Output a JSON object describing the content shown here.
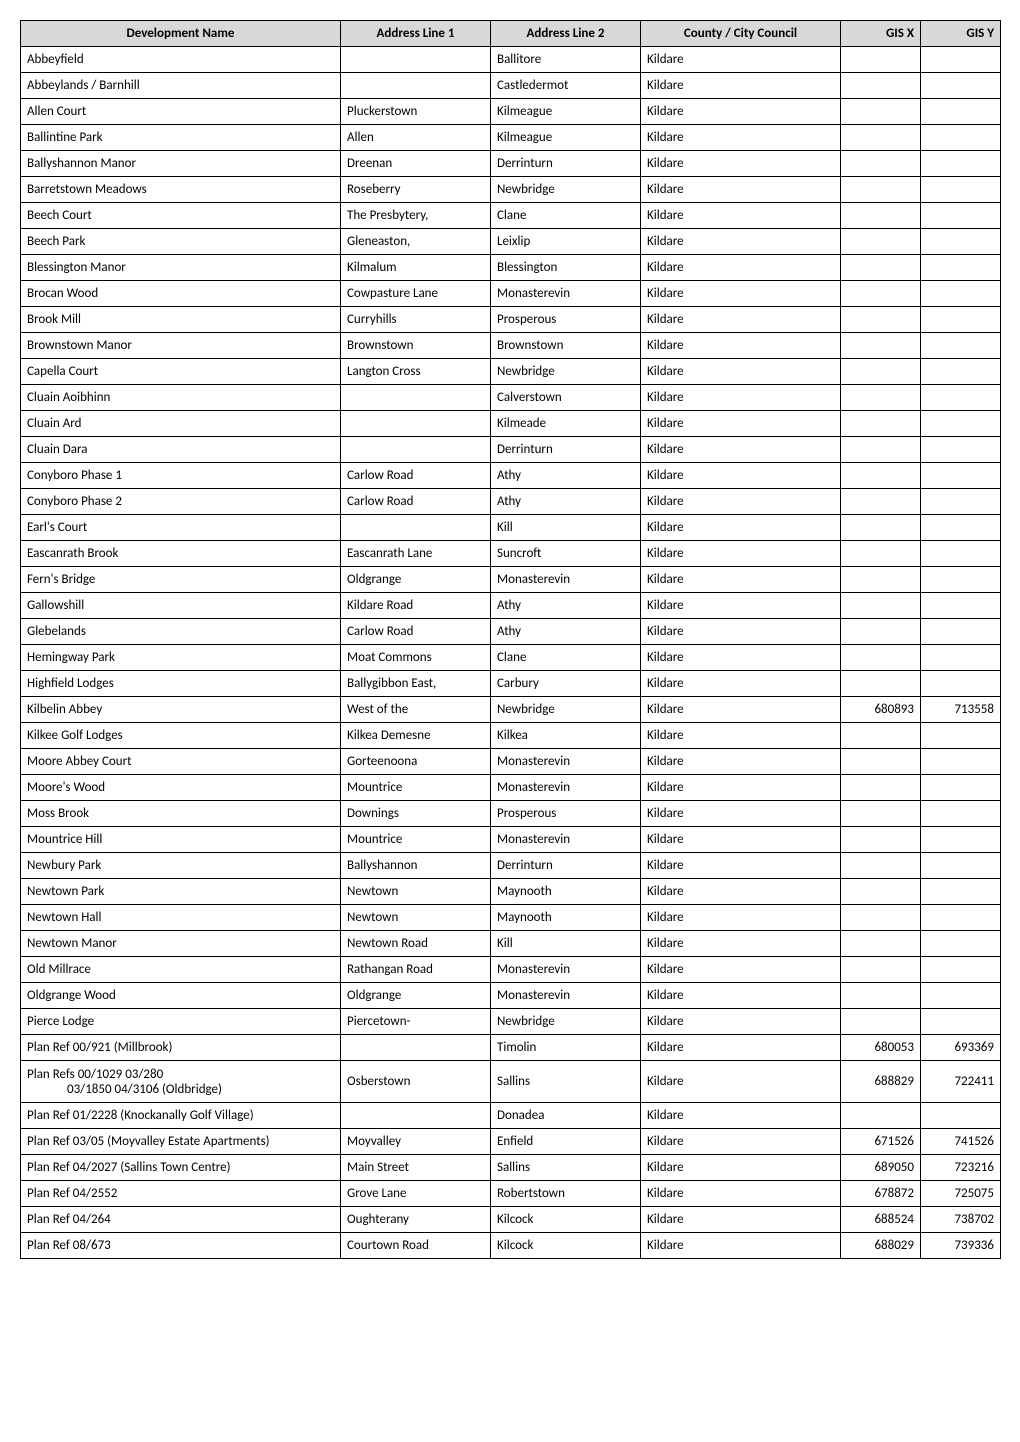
{
  "table": {
    "columns": [
      "Development Name",
      "Address Line 1",
      "Address Line 2",
      "County / City Council",
      "GIS X",
      "GIS Y"
    ],
    "header_bg": "#d8d8d8",
    "border_color": "#000000",
    "font_size": 13,
    "rows": [
      {
        "dev": "Abbeyfield",
        "a1": "",
        "a2": "Ballitore",
        "cc": "Kildare",
        "gx": "",
        "gy": ""
      },
      {
        "dev": "Abbeylands / Barnhill",
        "a1": "",
        "a2": "Castledermot",
        "cc": "Kildare",
        "gx": "",
        "gy": ""
      },
      {
        "dev": "Allen Court",
        "a1": "Pluckerstown",
        "a2": "Kilmeague",
        "cc": "Kildare",
        "gx": "",
        "gy": ""
      },
      {
        "dev": "Ballintine Park",
        "a1": "Allen",
        "a2": "Kilmeague",
        "cc": "Kildare",
        "gx": "",
        "gy": ""
      },
      {
        "dev": "Ballyshannon Manor",
        "a1": "Dreenan",
        "a2": "Derrinturn",
        "cc": "Kildare",
        "gx": "",
        "gy": ""
      },
      {
        "dev": "Barretstown Meadows",
        "a1": "Roseberry",
        "a2": "Newbridge",
        "cc": "Kildare",
        "gx": "",
        "gy": ""
      },
      {
        "dev": "Beech Court",
        "a1": "The Presbytery,",
        "a2": "Clane",
        "cc": "Kildare",
        "gx": "",
        "gy": ""
      },
      {
        "dev": "Beech Park",
        "a1": "Gleneaston,",
        "a2": "Leixlip",
        "cc": "Kildare",
        "gx": "",
        "gy": ""
      },
      {
        "dev": "Blessington Manor",
        "a1": "Kilmalum",
        "a2": "Blessington",
        "cc": "Kildare",
        "gx": "",
        "gy": ""
      },
      {
        "dev": "Brocan Wood",
        "a1": "Cowpasture Lane",
        "a2": "Monasterevin",
        "cc": "Kildare",
        "gx": "",
        "gy": ""
      },
      {
        "dev": "Brook Mill",
        "a1": "Curryhills",
        "a2": "Prosperous",
        "cc": "Kildare",
        "gx": "",
        "gy": ""
      },
      {
        "dev": "Brownstown Manor",
        "a1": "Brownstown",
        "a2": "Brownstown",
        "cc": "Kildare",
        "gx": "",
        "gy": ""
      },
      {
        "dev": "Capella Court",
        "a1": "Langton Cross",
        "a2": "Newbridge",
        "cc": "Kildare",
        "gx": "",
        "gy": ""
      },
      {
        "dev": "Cluain Aoibhinn",
        "a1": "",
        "a2": "Calverstown",
        "cc": "Kildare",
        "gx": "",
        "gy": ""
      },
      {
        "dev": "Cluain Ard",
        "a1": "",
        "a2": "Kilmeade",
        "cc": "Kildare",
        "gx": "",
        "gy": ""
      },
      {
        "dev": "Cluain Dara",
        "a1": "",
        "a2": "Derrinturn",
        "cc": "Kildare",
        "gx": "",
        "gy": ""
      },
      {
        "dev": "Conyboro Phase 1",
        "a1": "Carlow Road",
        "a2": "Athy",
        "cc": "Kildare",
        "gx": "",
        "gy": ""
      },
      {
        "dev": "Conyboro Phase 2",
        "a1": "Carlow Road",
        "a2": "Athy",
        "cc": "Kildare",
        "gx": "",
        "gy": ""
      },
      {
        "dev": "Earl's Court",
        "a1": "",
        "a2": "Kill",
        "cc": "Kildare",
        "gx": "",
        "gy": ""
      },
      {
        "dev": "Eascanrath Brook",
        "a1": "Eascanrath Lane",
        "a2": "Suncroft",
        "cc": "Kildare",
        "gx": "",
        "gy": ""
      },
      {
        "dev": "Fern's Bridge",
        "a1": "Oldgrange",
        "a2": "Monasterevin",
        "cc": "Kildare",
        "gx": "",
        "gy": ""
      },
      {
        "dev": "Gallowshill",
        "a1": "Kildare Road",
        "a2": "Athy",
        "cc": "Kildare",
        "gx": "",
        "gy": ""
      },
      {
        "dev": "Glebelands",
        "a1": "Carlow Road",
        "a2": "Athy",
        "cc": "Kildare",
        "gx": "",
        "gy": ""
      },
      {
        "dev": "Hemingway Park",
        "a1": "Moat Commons",
        "a2": "Clane",
        "cc": "Kildare",
        "gx": "",
        "gy": ""
      },
      {
        "dev": "Highfield Lodges",
        "a1": "Ballygibbon East,",
        "a2": "Carbury",
        "cc": "Kildare",
        "gx": "",
        "gy": ""
      },
      {
        "dev": "Kilbelin Abbey",
        "a1": "West of the",
        "a2": "Newbridge",
        "cc": "Kildare",
        "gx": "680893",
        "gy": "713558"
      },
      {
        "dev": "Kilkee Golf Lodges",
        "a1": "Kilkea Demesne",
        "a2": "Kilkea",
        "cc": "Kildare",
        "gx": "",
        "gy": ""
      },
      {
        "dev": "Moore Abbey Court",
        "a1": "Gorteenoona",
        "a2": "Monasterevin",
        "cc": "Kildare",
        "gx": "",
        "gy": ""
      },
      {
        "dev": "Moore's Wood",
        "a1": "Mountrice",
        "a2": "Monasterevin",
        "cc": "Kildare",
        "gx": "",
        "gy": ""
      },
      {
        "dev": "Moss Brook",
        "a1": "Downings",
        "a2": "Prosperous",
        "cc": "Kildare",
        "gx": "",
        "gy": ""
      },
      {
        "dev": "Mountrice Hill",
        "a1": "Mountrice",
        "a2": "Monasterevin",
        "cc": "Kildare",
        "gx": "",
        "gy": ""
      },
      {
        "dev": "Newbury Park",
        "a1": "Ballyshannon",
        "a2": "Derrinturn",
        "cc": "Kildare",
        "gx": "",
        "gy": ""
      },
      {
        "dev": "Newtown Park",
        "a1": "Newtown",
        "a2": "Maynooth",
        "cc": "Kildare",
        "gx": "",
        "gy": ""
      },
      {
        "dev": "Newtown Hall",
        "a1": "Newtown",
        "a2": "Maynooth",
        "cc": "Kildare",
        "gx": "",
        "gy": ""
      },
      {
        "dev": "Newtown Manor",
        "a1": "Newtown Road",
        "a2": "Kill",
        "cc": "Kildare",
        "gx": "",
        "gy": ""
      },
      {
        "dev": "Old Millrace",
        "a1": "Rathangan Road",
        "a2": "Monasterevin",
        "cc": "Kildare",
        "gx": "",
        "gy": ""
      },
      {
        "dev": "Oldgrange Wood",
        "a1": "Oldgrange",
        "a2": "Monasterevin",
        "cc": "Kildare",
        "gx": "",
        "gy": ""
      },
      {
        "dev": "Pierce Lodge",
        "a1": "Piercetown-",
        "a2": "Newbridge",
        "cc": "Kildare",
        "gx": "",
        "gy": ""
      },
      {
        "dev": "Plan Ref 00/921 (Millbrook)",
        "a1": "",
        "a2": "Timolin",
        "cc": "Kildare",
        "gx": "680053",
        "gy": "693369"
      },
      {
        "dev": "Plan Refs 00/1029 03/280 03/1850 04/3106 (Oldbridge)",
        "a1": "Osberstown",
        "a2": "Sallins",
        "cc": "Kildare",
        "gx": "688829",
        "gy": "722411",
        "tall": true
      },
      {
        "dev": "Plan Ref 01/2228 (Knockanally Golf Village)",
        "a1": "",
        "a2": "Donadea",
        "cc": "Kildare",
        "gx": "",
        "gy": ""
      },
      {
        "dev": "Plan Ref 03/05 (Moyvalley Estate Apartments)",
        "a1": "Moyvalley",
        "a2": "Enfield",
        "cc": "Kildare",
        "gx": "671526",
        "gy": "741526"
      },
      {
        "dev": "Plan Ref 04/2027 (Sallins Town Centre)",
        "a1": "Main Street",
        "a2": "Sallins",
        "cc": "Kildare",
        "gx": "689050",
        "gy": "723216"
      },
      {
        "dev": "Plan Ref 04/2552",
        "a1": "Grove Lane",
        "a2": "Robertstown",
        "cc": "Kildare",
        "gx": "678872",
        "gy": "725075"
      },
      {
        "dev": "Plan Ref 04/264",
        "a1": "Oughterany",
        "a2": "Kilcock",
        "cc": "Kildare",
        "gx": "688524",
        "gy": "738702"
      },
      {
        "dev": "Plan Ref 08/673",
        "a1": "Courtown Road",
        "a2": "Kilcock",
        "cc": "Kildare",
        "gx": "688029",
        "gy": "739336"
      }
    ]
  }
}
